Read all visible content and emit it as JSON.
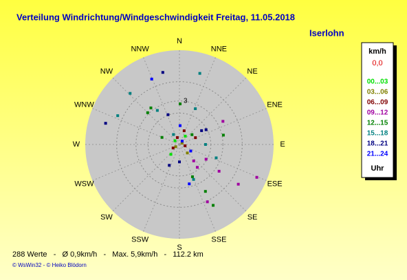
{
  "chart_data": {
    "type": "polar-scatter",
    "title": "Verteilung Windrichtung/Windgeschwindigkeit  Freitag, 11.05.2018",
    "location": "Iserlohn",
    "legend_title": "km/h",
    "calm": "0,0",
    "legend_footer": "Uhr",
    "directions": [
      "N",
      "NNE",
      "NE",
      "ENE",
      "E",
      "ESE",
      "SE",
      "SSE",
      "S",
      "SSW",
      "SW",
      "WSW",
      "W",
      "WNW",
      "NW",
      "NNW"
    ],
    "rlim": [
      0,
      6.5
    ],
    "rticks": [
      3
    ],
    "footer": "288 Werte   -   Ø 0,9km/h   -   Max. 5,9km/h   -   112.2 km",
    "credit": "© WsWin32  -  © Heiko Blödorn",
    "series": [
      {
        "name": "00...03",
        "color": "#00e000",
        "dir": [
          310,
          35,
          221
        ],
        "speed": [
          0.4,
          0.7,
          0.9
        ]
      },
      {
        "name": "03...06",
        "color": "#808000",
        "dir": [
          63,
          239,
          137
        ],
        "speed": [
          0.2,
          0.3,
          0.8
        ]
      },
      {
        "name": "06...09",
        "color": "#800000",
        "dir": [
          343,
          103,
          241,
          67,
          19
        ],
        "speed": [
          0.5,
          0.4,
          0.5,
          1.2,
          1.0
        ]
      },
      {
        "name": "09...12",
        "color": "#a000a0",
        "dir": [
          124,
          113,
          154,
          124,
          139,
          62,
          119,
          142
        ],
        "speed": [
          4.9,
          5.8,
          4.4,
          3.3,
          1.5,
          3.4,
          2.1,
          2.0
        ]
      },
      {
        "name": "12...15",
        "color": "#008000",
        "dir": [
          322,
          315,
          1,
          52,
          78,
          151,
          151,
          292,
          158
        ],
        "speed": [
          3.2,
          3.1,
          2.8,
          1.1,
          3.1,
          3.7,
          4.8,
          1.3,
          2.4
        ]
      },
      {
        "name": "15...18",
        "color": "#008080",
        "dir": [
          16,
          327,
          24,
          90,
          110,
          158,
          316,
          295,
          329
        ],
        "speed": [
          5.1,
          2.8,
          2.7,
          1.8,
          2.7,
          2.6,
          4.9,
          4.7,
          0.8
        ]
      },
      {
        "name": "18...21",
        "color": "#000080",
        "dir": [
          347,
          286,
          61,
          58,
          180,
          206,
          339
        ],
        "speed": [
          5.1,
          5.3,
          2.1,
          1.8,
          1.2,
          1.6,
          2.2
        ]
      },
      {
        "name": "21...24",
        "color": "#0000ff",
        "dir": [
          337,
          120,
          39,
          2,
          166
        ],
        "speed": [
          4.9,
          0.9,
          0.3,
          1.3,
          2.8
        ]
      }
    ]
  }
}
